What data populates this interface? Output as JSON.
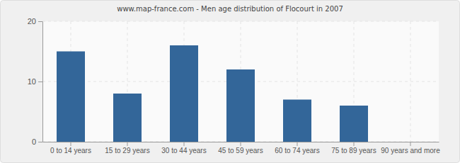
{
  "chart_data": {
    "type": "bar",
    "title": "www.map-france.com - Men age distribution of Flocourt in 2007",
    "categories": [
      "0 to 14 years",
      "15 to 29 years",
      "30 to 44 years",
      "45 to 59 years",
      "60 to 74 years",
      "75 to 89 years",
      "90 years and more"
    ],
    "values": [
      15,
      8,
      16,
      12,
      7,
      6,
      0
    ],
    "color": "#336699",
    "ylim": [
      0,
      20
    ],
    "yticks": [
      0,
      10,
      20
    ],
    "grid": true
  }
}
